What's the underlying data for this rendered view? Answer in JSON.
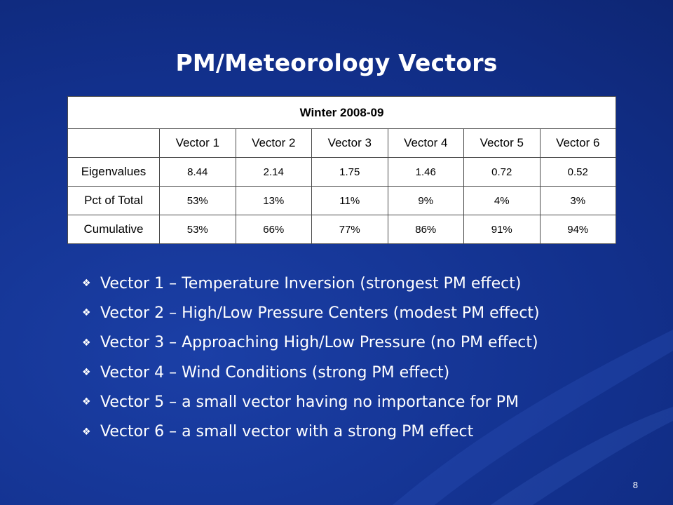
{
  "slide": {
    "title": "PM/Meteorology Vectors",
    "page_number": "8"
  },
  "table": {
    "caption": "Winter 2008-09",
    "corner": "",
    "columns": [
      "Vector 1",
      "Vector 2",
      "Vector 3",
      "Vector 4",
      "Vector 5",
      "Vector 6"
    ],
    "rows": [
      {
        "label": "Eigenvalues",
        "values": [
          "8.44",
          "2.14",
          "1.75",
          "1.46",
          "0.72",
          "0.52"
        ]
      },
      {
        "label": "Pct of Total",
        "values": [
          "53%",
          "13%",
          "11%",
          "9%",
          "4%",
          "3%"
        ]
      },
      {
        "label": "Cumulative",
        "values": [
          "53%",
          "66%",
          "77%",
          "86%",
          "91%",
          "94%"
        ]
      }
    ]
  },
  "bullets": [
    "Vector 1 – Temperature Inversion (strongest PM effect)",
    "Vector 2 – High/Low Pressure Centers (modest PM effect)",
    "Vector 3 – Approaching High/Low Pressure (no PM effect)",
    "Vector 4 – Wind Conditions (strong PM effect)",
    "Vector 5 – a small vector having no importance for PM",
    "Vector 6 – a small vector with a strong PM effect"
  ],
  "bullet_icon": "diamond-bullet-icon",
  "colors": {
    "background": "#12308c",
    "text": "#ffffff",
    "table_background": "#ffffff"
  }
}
